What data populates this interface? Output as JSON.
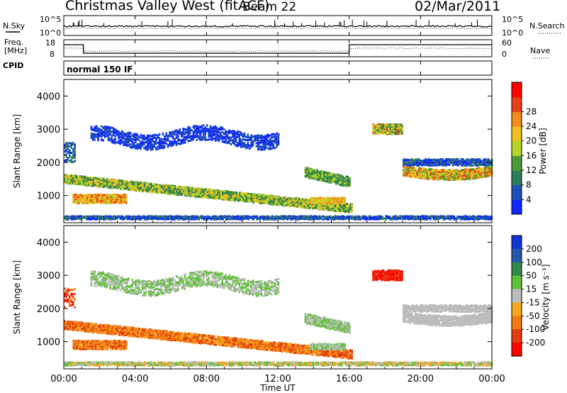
{
  "header": {
    "station": "Christmas Valley West (fitACF)",
    "beam": "Beam 22",
    "date": "02/Mar/2011"
  },
  "noise_panel": {
    "left_label": "N.Sky",
    "right_label": "N.Search",
    "left_ticks": [
      "10^5",
      "10^0"
    ],
    "right_ticks": [
      "10^5",
      "10^0"
    ]
  },
  "freq_panel": {
    "left_label_1": "Freq.",
    "left_label_2": "[MHz]",
    "left_ticks": [
      "18",
      "8"
    ],
    "right_label": "Nave",
    "right_ticks": [
      "60",
      "0"
    ]
  },
  "cpid_panel": {
    "label": "CPID",
    "value": "normal 150 IF"
  },
  "chart_data": [
    {
      "type": "heatmap",
      "name": "Power",
      "ylabel": "Slant Range [km]",
      "ylim": [
        180,
        4500
      ],
      "yticks": [
        1000,
        2000,
        3000,
        4000
      ],
      "xlim": [
        0,
        24
      ],
      "colorbar": {
        "label": "Power [dB]",
        "ticks": [
          "4",
          "8",
          "12",
          "16",
          "20",
          "24",
          "28"
        ],
        "colors": [
          "#1028ff",
          "#1f4fb8",
          "#2e7d5a",
          "#4c9a3a",
          "#b7d628",
          "#f0c020",
          "#f58a1e",
          "#e8401a",
          "#ff0000"
        ]
      }
    },
    {
      "type": "heatmap",
      "name": "Velocity",
      "ylabel": "Slant Range [km]",
      "ylim": [
        180,
        4500
      ],
      "yticks": [
        1000,
        2000,
        3000,
        4000
      ],
      "xlim": [
        0,
        24
      ],
      "colorbar": {
        "label": "Velocity [m s⁻¹]",
        "ticks": [
          "200",
          "100",
          "50",
          "15",
          "-15",
          "-50",
          "-100",
          "-200"
        ],
        "colors": [
          "#1433d6",
          "#2457a8",
          "#2f8a4a",
          "#61c23a",
          "#bdbdbd",
          "#f5a623",
          "#f07b0f",
          "#e33a12",
          "#ff0000"
        ]
      }
    }
  ],
  "x_axis": {
    "ticks": [
      "00:00",
      "04:00",
      "08:00",
      "12:00",
      "16:00",
      "20:00",
      "00:00"
    ],
    "label": "Time UT"
  }
}
